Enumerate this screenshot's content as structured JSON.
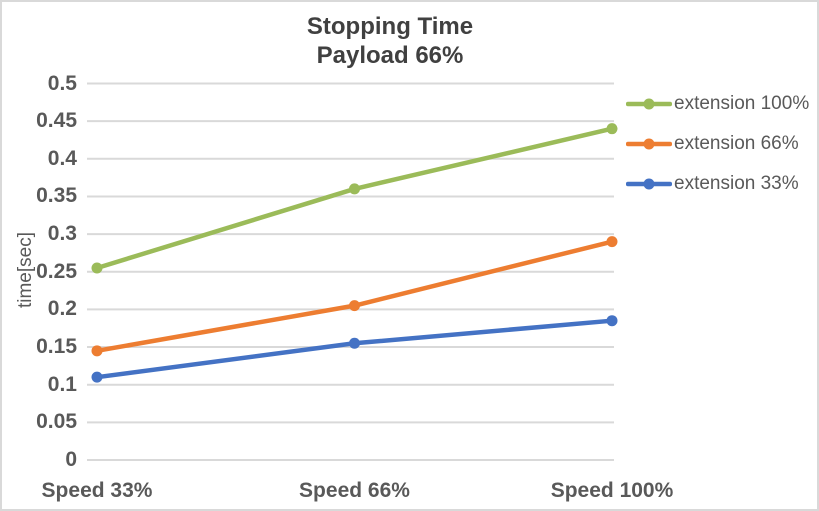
{
  "chart_data": {
    "type": "line",
    "title": "Stopping Time",
    "subtitle": "Payload 66%",
    "ylabel": "time[sec]",
    "xlabel": "",
    "categories": [
      "Speed 33%",
      "Speed 66%",
      "Speed 100%"
    ],
    "series": [
      {
        "name": "extension 100%",
        "color": "#9BBB59",
        "values": [
          0.255,
          0.36,
          0.44
        ]
      },
      {
        "name": "extension 66%",
        "color": "#ED7D31",
        "values": [
          0.145,
          0.205,
          0.29
        ]
      },
      {
        "name": "extension 33%",
        "color": "#4472C4",
        "values": [
          0.11,
          0.155,
          0.185
        ]
      }
    ],
    "ylim": [
      0,
      0.5
    ],
    "ytick_step": 0.05,
    "yticks": [
      "0",
      "0.05",
      "0.1",
      "0.15",
      "0.2",
      "0.25",
      "0.3",
      "0.35",
      "0.4",
      "0.45",
      "0.5"
    ],
    "grid": "horizontal",
    "legend_position": "right",
    "colors": {
      "grid": "#D9D9D9",
      "border": "#D9D9D9",
      "background": "#FFFFFF",
      "title_text": "#404040",
      "axis_text": "#595959"
    }
  }
}
